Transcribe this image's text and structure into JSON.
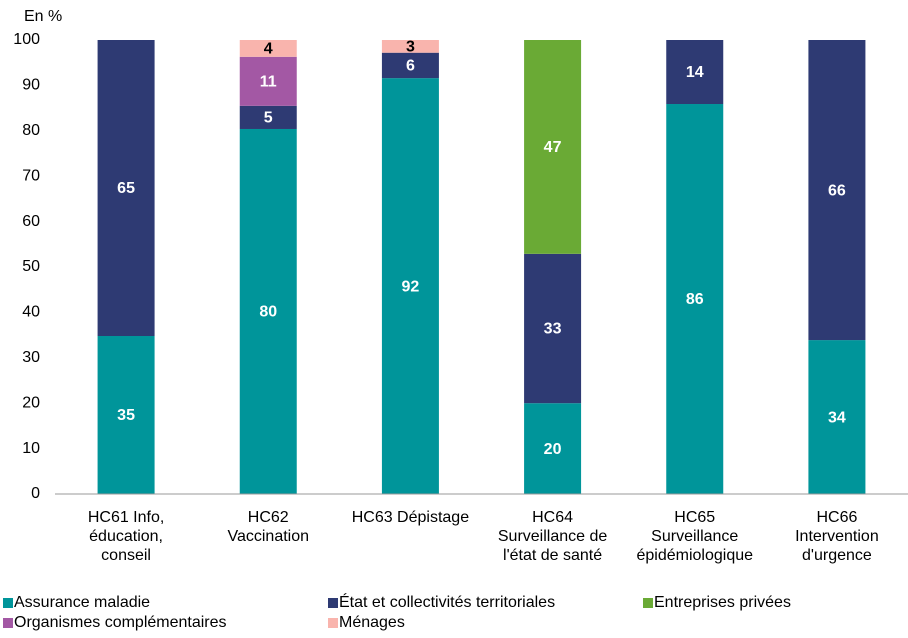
{
  "chart_data": {
    "type": "stacked_bar",
    "y_label": "En %",
    "categories": [
      [
        "HC61 Info,",
        "éducation,",
        "conseil"
      ],
      [
        "HC62",
        "Vaccination"
      ],
      [
        "HC63 Dépistage"
      ],
      [
        "HC64",
        "Surveillance de",
        "l'état de santé"
      ],
      [
        "HC65",
        "Surveillance",
        "épidémiologique"
      ],
      [
        "HC66",
        "Intervention",
        "d'urgence"
      ]
    ],
    "series": [
      {
        "name": "Assurance maladie",
        "color": "#00959a",
        "label_color": "#ffffff",
        "values": [
          34.8,
          80.4,
          91.6,
          20.0,
          85.9,
          33.9
        ],
        "value_labels": [
          "35",
          "80",
          "92",
          "20",
          "86",
          "34"
        ]
      },
      {
        "name": "État et collectivités territoriales",
        "color": "#2e3a73",
        "label_color": "#ffffff",
        "values": [
          65.2,
          5.1,
          5.6,
          32.9,
          14.1,
          66.1
        ],
        "value_labels": [
          "65",
          "5",
          "6",
          "33",
          "14",
          "66"
        ]
      },
      {
        "name": "Entreprises privées",
        "color": "#6aaa35",
        "label_color": "#ffffff",
        "values": [
          null,
          null,
          null,
          47.1,
          null,
          null
        ],
        "value_labels": [
          null,
          null,
          null,
          "47",
          null,
          null
        ]
      },
      {
        "name": "Organismes complémentaires",
        "color": "#a358a4",
        "label_color": "#ffffff",
        "values": [
          null,
          10.8,
          null,
          null,
          null,
          null
        ],
        "value_labels": [
          null,
          "11",
          null,
          null,
          null,
          null
        ]
      },
      {
        "name": "Ménages",
        "color": "#f9b4ad",
        "label_color": "#000000",
        "values": [
          null,
          3.7,
          2.8,
          null,
          null,
          null
        ],
        "value_labels": [
          null,
          "4",
          "3",
          null,
          null,
          null
        ]
      }
    ],
    "ylim": [
      0,
      100
    ],
    "yticks": [
      0,
      10,
      20,
      30,
      40,
      50,
      60,
      70,
      80,
      90,
      100
    ],
    "grid": false
  }
}
